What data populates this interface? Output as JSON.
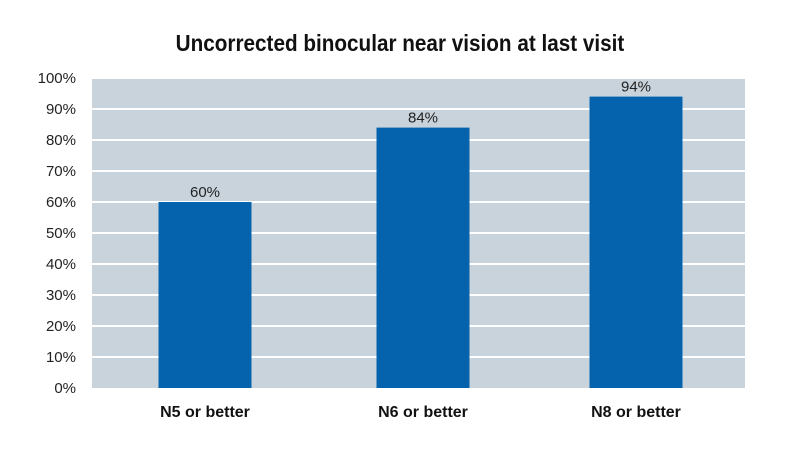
{
  "chart_data": {
    "type": "bar",
    "title": "Uncorrected binocular near vision at last visit",
    "categories": [
      "N5 or better",
      "N6 or better",
      "N8 or better"
    ],
    "values": [
      60,
      84,
      94
    ],
    "data_labels": [
      "60%",
      "84%",
      "94%"
    ],
    "ylim": [
      0,
      100
    ],
    "yticks": [
      0,
      10,
      20,
      30,
      40,
      50,
      60,
      70,
      80,
      90,
      100
    ],
    "ytick_labels": [
      "0%",
      "10%",
      "20%",
      "30%",
      "40%",
      "50%",
      "60%",
      "70%",
      "80%",
      "90%",
      "100%"
    ],
    "xlabel": "",
    "ylabel": "",
    "grid": true,
    "colors": {
      "bar": "#0563ad",
      "plot_background": "#c8d3dc",
      "gridline": "#ffffff"
    }
  }
}
